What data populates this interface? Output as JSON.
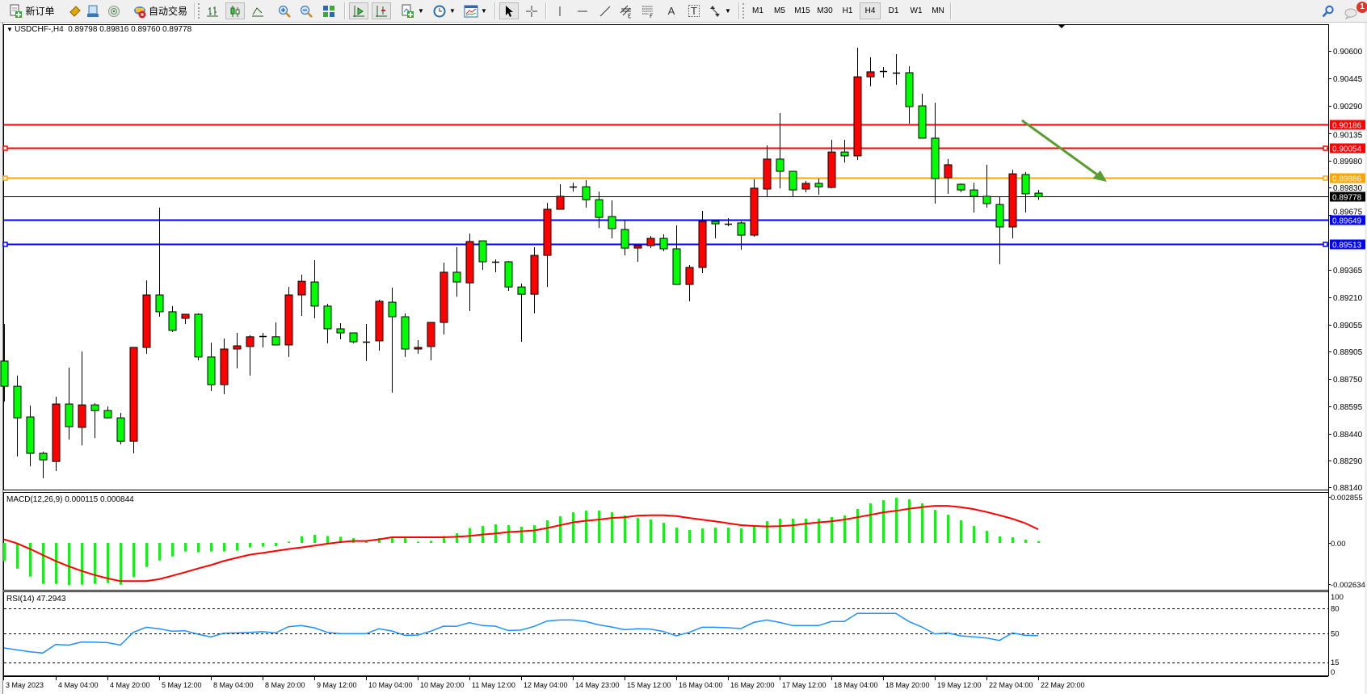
{
  "toolbar": {
    "new_order": "新订单",
    "auto_trading": "自动交易",
    "text_tool": "A",
    "text_label_tool": "T",
    "timeframes": [
      "M1",
      "M5",
      "M15",
      "M30",
      "H1",
      "H4",
      "D1",
      "W1",
      "MN"
    ],
    "active_timeframe": "H4",
    "notification_count": "1",
    "icons": [
      "new-order-icon",
      "market-watch-icon",
      "navigator-icon",
      "signals-icon",
      "auto-trading-icon",
      "bar-chart-icon",
      "candlestick-icon",
      "line-chart-icon",
      "zoom-in-icon",
      "zoom-out-icon",
      "tile-windows-icon",
      "auto-scroll-icon",
      "chart-shift-icon",
      "indicators-icon",
      "periods-icon",
      "templates-icon",
      "cursor-icon",
      "crosshair-icon",
      "vertical-line-icon",
      "horizontal-line-icon",
      "trendline-icon",
      "equidistant-channel-icon",
      "fibonacci-icon",
      "arrows-icon",
      "search-icon",
      "notifications-icon"
    ]
  },
  "chart": {
    "symbol_title": "USDCHF-,H4",
    "ohlc_readout": "0.89798 0.89816 0.89760 0.89778"
  },
  "chart_data": [
    {
      "type": "bar",
      "style": "candlestick",
      "title": "USDCHF-,H4",
      "bull_color": "#ff0000",
      "bear_color": "#00ff00",
      "bid": 0.89778,
      "ylim": [
        0.8811,
        0.9068
      ],
      "y_ticks": [
        "0.90600",
        "0.90445",
        "0.90290",
        "0.90135",
        "0.89980",
        "0.89830",
        "0.89675",
        "0.89365",
        "0.89210",
        "0.89055",
        "0.88905",
        "0.88750",
        "0.88595",
        "0.88440",
        "0.88290",
        "0.88140"
      ],
      "x_tick_labels": [
        "3 May 2023",
        "4 May 04:00",
        "4 May 20:00",
        "5 May 12:00",
        "8 May 04:00",
        "8 May 20:00",
        "9 May 12:00",
        "10 May 04:00",
        "10 May 20:00",
        "11 May 12:00",
        "12 May 04:00",
        "14 May 23:00",
        "15 May 12:00",
        "16 May 04:00",
        "16 May 20:00",
        "17 May 12:00",
        "18 May 04:00",
        "18 May 20:00",
        "19 May 12:00",
        "22 May 04:00",
        "22 May 20:00"
      ],
      "x_tick_every_bars": 4,
      "hlines": [
        {
          "price": "0.90186",
          "color": "#ff0000",
          "handles": false
        },
        {
          "price": "0.90054",
          "color": "#ff0000",
          "handles": true
        },
        {
          "price": "0.89886",
          "color": "#ffa500",
          "handles": true
        },
        {
          "price": "0.89778",
          "color": "#000000",
          "handles": false,
          "bid_line": true
        },
        {
          "price": "0.89649",
          "color": "#0000ff",
          "handles": false
        },
        {
          "price": "0.89513",
          "color": "#0000ff",
          "handles": true
        }
      ],
      "annotation_arrow_color": "#5a9e32",
      "ohlc": [
        [
          0.88851,
          0.8906,
          0.88623,
          0.88709
        ],
        [
          0.88709,
          0.88769,
          0.88313,
          0.88531
        ],
        [
          0.88536,
          0.886,
          0.88258,
          0.88331
        ],
        [
          0.88331,
          0.8834,
          0.8819,
          0.88294
        ],
        [
          0.88285,
          0.8865,
          0.88231,
          0.88609
        ],
        [
          0.88609,
          0.88814,
          0.88408,
          0.88481
        ],
        [
          0.88477,
          0.88905,
          0.88376,
          0.88604
        ],
        [
          0.88604,
          0.88614,
          0.88417,
          0.88572
        ],
        [
          0.88572,
          0.88595,
          0.88527,
          0.88531
        ],
        [
          0.88531,
          0.88559,
          0.88381,
          0.88399
        ],
        [
          0.88399,
          0.88928,
          0.88331,
          0.88928
        ],
        [
          0.88928,
          0.89306,
          0.88892,
          0.89224
        ],
        [
          0.89224,
          0.89716,
          0.89101,
          0.89129
        ],
        [
          0.89129,
          0.89161,
          0.89015,
          0.89024
        ],
        [
          0.89092,
          0.89115,
          0.8906,
          0.89115
        ],
        [
          0.89115,
          0.8912,
          0.88855,
          0.88874
        ],
        [
          0.88874,
          0.88955,
          0.88682,
          0.88718
        ],
        [
          0.88718,
          0.88978,
          0.88664,
          0.88919
        ],
        [
          0.88919,
          0.8901,
          0.8881,
          0.88937
        ],
        [
          0.88933,
          0.88997,
          0.88769,
          0.88988
        ],
        [
          0.88988,
          0.8901,
          0.88928,
          0.8899
        ],
        [
          0.88988,
          0.89069,
          0.88942,
          0.88942
        ],
        [
          0.88942,
          0.89269,
          0.88874,
          0.89224
        ],
        [
          0.89224,
          0.89338,
          0.89106,
          0.89301
        ],
        [
          0.89297,
          0.8942,
          0.89092,
          0.89161
        ],
        [
          0.89161,
          0.89174,
          0.88951,
          0.89033
        ],
        [
          0.89033,
          0.89065,
          0.88974,
          0.8901
        ],
        [
          0.8901,
          0.8901,
          0.88951,
          0.8896
        ],
        [
          0.8896,
          0.8906,
          0.88851,
          0.88962
        ],
        [
          0.88965,
          0.89197,
          0.8891,
          0.89188
        ],
        [
          0.89183,
          0.89265,
          0.88673,
          0.89101
        ],
        [
          0.89101,
          0.8912,
          0.88874,
          0.88919
        ],
        [
          0.88919,
          0.88969,
          0.88892,
          0.88928
        ],
        [
          0.88933,
          0.89069,
          0.88855,
          0.89069
        ],
        [
          0.89069,
          0.89406,
          0.89001,
          0.89352
        ],
        [
          0.89352,
          0.89493,
          0.89214,
          0.89297
        ],
        [
          0.89292,
          0.8957,
          0.89133,
          0.89525
        ],
        [
          0.89529,
          0.89529,
          0.89365,
          0.89411
        ],
        [
          0.89411,
          0.89424,
          0.89352,
          0.89409
        ],
        [
          0.89411,
          0.89415,
          0.89247,
          0.89269
        ],
        [
          0.89269,
          0.89288,
          0.8896,
          0.89228
        ],
        [
          0.89228,
          0.89493,
          0.8912,
          0.89447
        ],
        [
          0.89447,
          0.89743,
          0.89269,
          0.89707
        ],
        [
          0.89707,
          0.89848,
          0.89707,
          0.8978
        ],
        [
          0.89834,
          0.89857,
          0.89807,
          0.89836
        ],
        [
          0.89834,
          0.89871,
          0.89716,
          0.89761
        ],
        [
          0.89761,
          0.89807,
          0.89602,
          0.89661
        ],
        [
          0.89666,
          0.89757,
          0.89543,
          0.89598
        ],
        [
          0.89593,
          0.89648,
          0.89447,
          0.89488
        ],
        [
          0.89488,
          0.89502,
          0.89411,
          0.89502
        ],
        [
          0.89502,
          0.89557,
          0.89488,
          0.89543
        ],
        [
          0.89543,
          0.89566,
          0.8947,
          0.89484
        ],
        [
          0.89484,
          0.89616,
          0.89283,
          0.89283
        ],
        [
          0.89283,
          0.89393,
          0.89188,
          0.89379
        ],
        [
          0.89379,
          0.89698,
          0.89347,
          0.89639
        ],
        [
          0.89639,
          0.89639,
          0.89543,
          0.89625
        ],
        [
          0.89625,
          0.89657,
          0.89611,
          0.89627
        ],
        [
          0.8963,
          0.89639,
          0.89479,
          0.89561
        ],
        [
          0.89561,
          0.89876,
          0.89552,
          0.89826
        ],
        [
          0.89821,
          0.90067,
          0.89776,
          0.8999
        ],
        [
          0.8999,
          0.90249,
          0.89825,
          0.89921
        ],
        [
          0.89921,
          0.89921,
          0.89776,
          0.89816
        ],
        [
          0.89821,
          0.89867,
          0.89803,
          0.89853
        ],
        [
          0.89853,
          0.8988,
          0.89789,
          0.89834
        ],
        [
          0.8983,
          0.90099,
          0.89825,
          0.9003
        ],
        [
          0.9003,
          0.90099,
          0.89971,
          0.90008
        ],
        [
          0.90008,
          0.90618,
          0.89985,
          0.90454
        ],
        [
          0.90454,
          0.90564,
          0.904,
          0.90482
        ],
        [
          0.90482,
          0.90509,
          0.90449,
          0.90484
        ],
        [
          0.90477,
          0.90582,
          0.90409,
          0.90475
        ],
        [
          0.90477,
          0.90513,
          0.9019,
          0.90286
        ],
        [
          0.9029,
          0.90359,
          0.90108,
          0.90108
        ],
        [
          0.90108,
          0.90308,
          0.89739,
          0.8988
        ],
        [
          0.89885,
          0.8999,
          0.89794,
          0.89958
        ],
        [
          0.89848,
          0.89853,
          0.89803,
          0.89816
        ],
        [
          0.89816,
          0.89857,
          0.89689,
          0.8978
        ],
        [
          0.8978,
          0.89958,
          0.89716,
          0.89739
        ],
        [
          0.89734,
          0.8978,
          0.89397,
          0.89607
        ],
        [
          0.89607,
          0.8993,
          0.89543,
          0.89907
        ],
        [
          0.89903,
          0.89917,
          0.89689,
          0.89794
        ],
        [
          0.89798,
          0.89816,
          0.8976,
          0.89778
        ]
      ]
    },
    {
      "type": "bar",
      "title": "MACD(12,26,9) 0.000115 0.000844",
      "histogram_color": "#00ff00",
      "signal_color": "#ff0000",
      "y_ticks": [
        "0.002855",
        "0.00",
        "-0.002634"
      ],
      "histogram": [
        -0.00112,
        -0.00159,
        -0.00209,
        -0.00254,
        -0.00254,
        -0.00262,
        -0.00259,
        -0.00254,
        -0.00249,
        -0.00259,
        -0.00212,
        -0.00149,
        -0.00109,
        -0.00084,
        -0.00053,
        -0.00058,
        -0.00053,
        -0.00053,
        -0.00048,
        -0.00028,
        -0.00023,
        -0.0002,
        8e-05,
        0.00042,
        0.0005,
        0.00043,
        0.00038,
        0.0003,
        0.00013,
        0.0003,
        0.0003,
        0.0003,
        8e-05,
        0.00013,
        0.00043,
        0.0006,
        0.00092,
        0.00105,
        0.00115,
        0.0011,
        0.001,
        0.0011,
        0.0014,
        0.00165,
        0.0019,
        0.002,
        0.002,
        0.0019,
        0.0017,
        0.00155,
        0.00145,
        0.00125,
        0.00095,
        0.0008,
        0.0009,
        0.00095,
        0.00095,
        0.0009,
        0.00105,
        0.00135,
        0.0015,
        0.0015,
        0.0015,
        0.0015,
        0.0016,
        0.0017,
        0.0021,
        0.00245,
        0.00265,
        0.0028,
        0.0027,
        0.00245,
        0.00205,
        0.00175,
        0.0014,
        0.00105,
        0.00075,
        0.0004,
        0.00035,
        0.0002,
        0.000115
      ],
      "signal": [
        0.00022,
        -3e-05,
        -0.00037,
        -0.00075,
        -0.00112,
        -0.00145,
        -0.00174,
        -0.00199,
        -0.0022,
        -0.00237,
        -0.00237,
        -0.00237,
        -0.00225,
        -0.00204,
        -0.00182,
        -0.00159,
        -0.00137,
        -0.00112,
        -0.00092,
        -0.00073,
        -0.00062,
        -0.0005,
        -0.00038,
        -0.00028,
        -0.00017,
        -5e-05,
        5e-05,
        0.00012,
        0.00012,
        0.00022,
        0.00035,
        0.00035,
        0.00035,
        0.00035,
        0.00035,
        0.00038,
        0.00043,
        0.00052,
        0.00058,
        0.00067,
        0.00072,
        0.00077,
        0.00092,
        0.00109,
        0.00127,
        0.00137,
        0.00145,
        0.00155,
        0.00159,
        0.00169,
        0.00172,
        0.00172,
        0.00167,
        0.00155,
        0.00144,
        0.00134,
        0.00122,
        0.0011,
        0.00105,
        0.00102,
        0.00104,
        0.00109,
        0.00119,
        0.00127,
        0.00134,
        0.00145,
        0.00159,
        0.00174,
        0.00189,
        0.00199,
        0.00212,
        0.00222,
        0.0023,
        0.0023,
        0.00222,
        0.0021,
        0.00192,
        0.00172,
        0.0015,
        0.00122,
        0.000844
      ]
    },
    {
      "type": "line",
      "title": "RSI(14) 47.2943",
      "line_color": "#1e90ff",
      "levels": [
        80,
        50,
        15
      ],
      "y_ticks": [
        "100",
        "80",
        "50",
        "15",
        "0"
      ],
      "ylim": [
        0,
        100
      ],
      "values": [
        32.6,
        30.3,
        28.0,
        26.5,
        36.8,
        36.0,
        39.7,
        39.4,
        39.0,
        36.0,
        51.3,
        57.4,
        55.5,
        52.6,
        53.2,
        49.0,
        45.8,
        50.3,
        50.6,
        51.3,
        52.0,
        50.6,
        58.0,
        59.4,
        56.8,
        51.3,
        49.7,
        49.7,
        49.7,
        55.5,
        52.9,
        47.7,
        48.0,
        52.6,
        58.7,
        58.4,
        62.9,
        59.4,
        58.7,
        53.5,
        54.0,
        58.4,
        64.8,
        66.1,
        66.1,
        64.2,
        60.3,
        57.7,
        54.5,
        55.5,
        55.2,
        52.3,
        47.1,
        51.3,
        57.4,
        57.4,
        56.8,
        55.8,
        63.2,
        66.1,
        63.2,
        59.4,
        59.4,
        59.4,
        64.2,
        64.2,
        73.9,
        73.9,
        73.9,
        73.9,
        64.2,
        57.7,
        49.4,
        50.6,
        47.1,
        45.8,
        44.5,
        41.6,
        50.6,
        47.7,
        47.2943
      ]
    }
  ]
}
